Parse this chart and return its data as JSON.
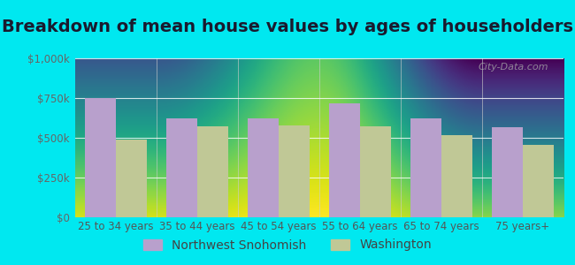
{
  "title": "Breakdown of mean house values by ages of householders",
  "categories": [
    "25 to 34 years",
    "35 to 44 years",
    "45 to 54 years",
    "55 to 64 years",
    "65 to 74 years",
    "75 years+"
  ],
  "northwest_snohomish": [
    750000,
    625000,
    620000,
    715000,
    620000,
    565000
  ],
  "washington": [
    490000,
    570000,
    580000,
    570000,
    515000,
    455000
  ],
  "color_ns": "#b8a0cc",
  "color_wa": "#c0c896",
  "ylabel_ticks": [
    0,
    250000,
    500000,
    750000,
    1000000
  ],
  "ylabel_labels": [
    "$0",
    "$250k",
    "$500k",
    "$750k",
    "$1,000k"
  ],
  "ylim": [
    0,
    1000000
  ],
  "legend_ns": "Northwest Snohomish",
  "legend_wa": "Washington",
  "background_outer": "#00e8f0",
  "background_plot_top": "#f5f8f0",
  "background_plot_bottom": "#d8edcc",
  "watermark": "City-Data.com",
  "title_fontsize": 14,
  "tick_fontsize": 8.5,
  "legend_fontsize": 10,
  "bar_width": 0.38
}
